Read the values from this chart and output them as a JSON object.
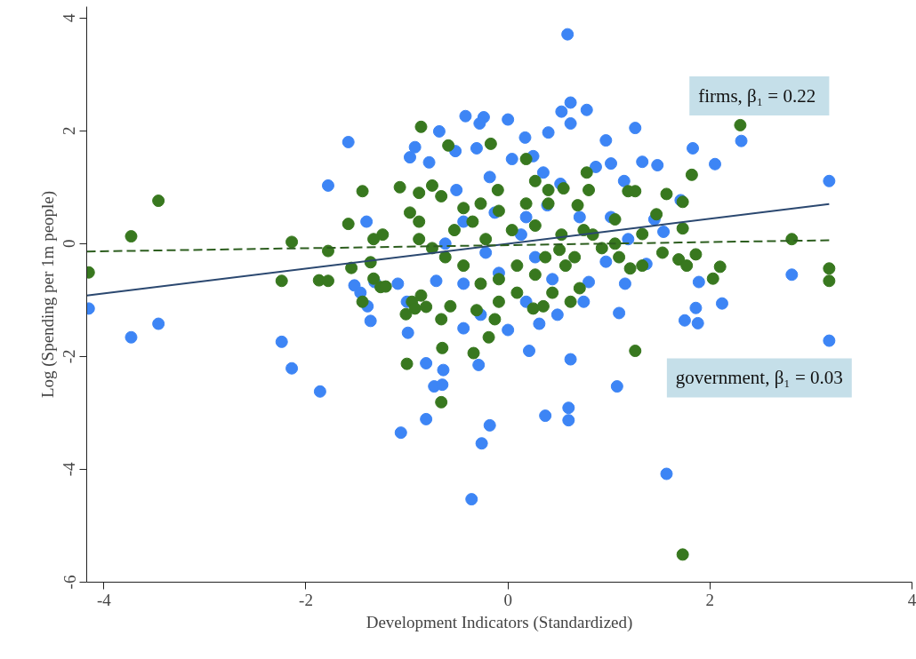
{
  "chart_data": {
    "type": "scatter",
    "xlabel": "Development Indicators (Standardized)",
    "ylabel": "Log (Spending per 1m people)",
    "xlim": [
      -4.17,
      4.0
    ],
    "ylim": [
      -6,
      4.2
    ],
    "xticks": [
      -4,
      -2,
      0,
      2,
      4
    ],
    "yticks": [
      -6,
      -4,
      -2,
      0,
      2,
      4
    ],
    "grid": false,
    "annotations": [
      "firms, β₁  = 0.22",
      "government, β₁ = 0.03"
    ],
    "series": [
      {
        "marker": "circle",
        "color": "#3d85f5",
        "x": [
          -4.15,
          -3.73,
          -3.46,
          -2.24,
          -2.14,
          -1.86,
          -1.78,
          -1.58,
          -1.06,
          -0.81,
          -0.81,
          -0.73,
          -0.65,
          -0.64,
          -0.36,
          -0.26,
          -0.18,
          -0.29,
          -1.36,
          -1.39,
          0.59,
          0.62,
          0.78,
          0.53,
          0.62,
          0.4,
          1.26,
          1.33,
          1.48,
          2.05,
          2.31,
          1.83,
          3.18,
          1.71,
          2.81,
          3.18,
          1.88,
          2.12,
          1.86,
          1.89,
          1.75,
          1.57,
          1.08,
          0.6,
          0.6,
          0.37,
          0.62,
          0.21,
          0.0,
          1.1,
          1.16,
          1.37,
          -0.24,
          -0.42,
          -0.28,
          0.0,
          -0.68,
          -0.92,
          -0.97,
          -0.78,
          -0.52,
          -0.31,
          0.17,
          0.97,
          1.02,
          0.04,
          0.25,
          0.87,
          -0.51,
          -0.18,
          0.35,
          0.52,
          1.15,
          1.54,
          1.45,
          1.02,
          -0.13,
          -0.44,
          0.18,
          0.39,
          0.71,
          -1.4,
          -1.52,
          -1.46,
          -1.32,
          -1.09,
          -1.0,
          -0.71,
          -0.44,
          -0.09,
          0.44,
          0.8,
          0.27,
          -0.22,
          0.13,
          -0.62,
          -0.27,
          0.31,
          0.49,
          0.75,
          -0.44,
          0.18,
          0.97,
          1.19,
          -0.99
        ],
        "values": [
          -1.15,
          -1.66,
          -1.42,
          -1.74,
          -2.21,
          -2.62,
          1.03,
          1.8,
          -3.35,
          -3.11,
          -2.12,
          -2.53,
          -2.5,
          -2.24,
          -4.53,
          -3.54,
          -3.22,
          -2.15,
          -1.37,
          -1.11,
          3.71,
          2.5,
          2.37,
          2.34,
          2.13,
          1.97,
          2.05,
          1.45,
          1.39,
          1.41,
          1.82,
          1.69,
          1.11,
          0.77,
          -0.55,
          -1.72,
          -1.41,
          -1.06,
          -1.14,
          -0.68,
          -1.36,
          -4.08,
          -2.53,
          -2.91,
          -3.13,
          -3.05,
          -2.05,
          -1.9,
          -1.53,
          -1.23,
          -0.71,
          -0.36,
          2.24,
          2.26,
          2.13,
          2.2,
          1.99,
          1.71,
          1.53,
          1.44,
          1.64,
          1.69,
          1.88,
          1.83,
          1.42,
          1.5,
          1.55,
          1.36,
          0.95,
          1.18,
          1.26,
          1.06,
          1.11,
          0.21,
          0.43,
          0.47,
          0.55,
          0.39,
          0.47,
          0.68,
          0.47,
          0.39,
          -0.74,
          -0.87,
          -0.68,
          -0.71,
          -1.03,
          -0.66,
          -0.71,
          -0.52,
          -0.63,
          -0.68,
          -0.24,
          -0.16,
          0.16,
          0.0,
          -1.26,
          -1.42,
          -1.26,
          -1.03,
          -1.5,
          -1.03,
          -0.32,
          0.08,
          -1.58
        ]
      },
      {
        "marker": "circle",
        "color": "#38781f",
        "x": [
          -4.15,
          -3.73,
          -3.46,
          -2.14,
          -2.24,
          -1.87,
          -1.78,
          -1.78,
          -1.58,
          -1.44,
          -1.44,
          -1.55,
          -1.36,
          -1.33,
          -1.26,
          -1.21,
          -1.24,
          -1.33,
          -1.07,
          -0.86,
          -0.86,
          -0.95,
          -1.01,
          -0.92,
          -1.0,
          -0.81,
          -0.65,
          -0.66,
          -0.66,
          -0.57,
          -0.34,
          -0.19,
          -0.31,
          -0.13,
          -0.17,
          -0.59,
          -0.1,
          0.18,
          0.27,
          0.4,
          0.55,
          0.69,
          0.8,
          0.78,
          1.19,
          1.26,
          1.47,
          1.57,
          1.73,
          1.82,
          1.73,
          1.86,
          1.53,
          1.33,
          1.21,
          1.69,
          1.77,
          2.1,
          2.03,
          2.3,
          2.81,
          3.18,
          3.18,
          1.26,
          1.73,
          1.1,
          1.06,
          1.33,
          0.84,
          0.57,
          0.37,
          0.27,
          0.09,
          -0.09,
          -0.27,
          -0.44,
          -0.62,
          -0.75,
          -0.88,
          -0.53,
          -0.35,
          -0.22,
          0.04,
          0.27,
          0.53,
          0.75,
          0.44,
          0.62,
          0.71,
          0.25,
          0.35,
          0.09,
          -0.09,
          -0.88,
          -0.75,
          -0.66,
          -0.44,
          -0.27,
          -0.97,
          -0.88,
          0.18,
          0.4,
          -0.09,
          0.93,
          1.06,
          0.51,
          0.66
        ],
        "values": [
          -0.51,
          0.13,
          0.76,
          0.03,
          -0.66,
          -0.65,
          -0.66,
          -0.13,
          0.35,
          0.93,
          -1.03,
          -0.43,
          -0.33,
          -0.62,
          -0.77,
          -0.76,
          0.16,
          0.08,
          1.0,
          2.07,
          -0.92,
          -1.03,
          -1.25,
          -1.15,
          -2.13,
          -1.12,
          -1.85,
          -2.81,
          -1.34,
          -1.11,
          -1.94,
          -1.66,
          -1.18,
          -1.34,
          1.77,
          1.74,
          0.95,
          1.5,
          1.11,
          0.71,
          0.98,
          0.68,
          0.95,
          1.26,
          0.93,
          0.93,
          0.52,
          0.88,
          0.74,
          1.22,
          0.27,
          -0.19,
          -0.16,
          -0.39,
          -0.44,
          -0.28,
          -0.39,
          -0.41,
          -0.62,
          2.1,
          0.08,
          -0.44,
          -0.66,
          -1.9,
          -5.51,
          -0.24,
          0.43,
          0.17,
          0.16,
          -0.39,
          -0.24,
          -0.55,
          -0.39,
          -0.63,
          -0.71,
          -0.39,
          -0.24,
          -0.08,
          0.08,
          0.24,
          0.39,
          0.08,
          0.24,
          0.32,
          0.16,
          0.24,
          -0.87,
          -1.03,
          -0.79,
          -1.15,
          -1.11,
          -0.87,
          -1.03,
          0.9,
          1.03,
          0.84,
          0.63,
          0.71,
          0.55,
          0.39,
          0.71,
          0.95,
          0.58,
          -0.08,
          0.0,
          -0.11,
          -0.24
        ]
      },
      {
        "type": "line",
        "color": "#2b4870",
        "line_style": "solid",
        "x": [
          -4.17,
          3.18
        ],
        "values": [
          -0.92,
          0.7
        ]
      },
      {
        "type": "line",
        "color": "#2d5e1f",
        "line_style": "dashed",
        "x": [
          -4.17,
          3.18
        ],
        "values": [
          -0.14,
          0.06
        ]
      }
    ]
  }
}
